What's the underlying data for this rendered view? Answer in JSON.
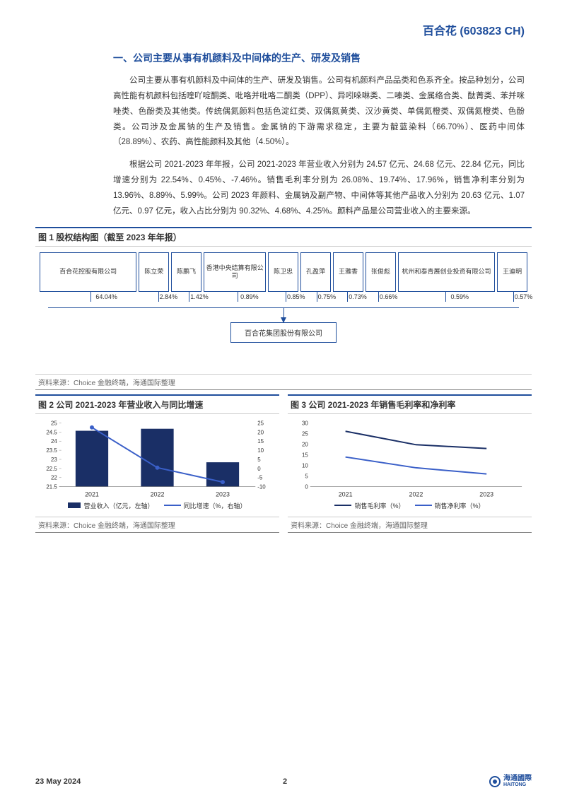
{
  "header": {
    "company": "百合花",
    "ticker": "(603823 CH)"
  },
  "section1": {
    "title": "一、公司主要从事有机颜料及中间体的生产、研发及销售",
    "para1": "公司主要从事有机颜料及中间体的生产、研发及销售。公司有机颜料产品品类和色系齐全。按品种划分，公司高性能有机颜料包括喹吖啶酮类、吡咯并吡咯二酮类（DPP）、异吲哚啉类、二嗪类、金属络合类、酞菁类、苯并咪唑类、色酚类及其他类。传统偶氮颜料包括色淀红类、双偶氮黄类、汉沙黄类、单偶氮橙类、双偶氮橙类、色酚类。公司涉及金属钠的生产及销售。金属钠的下游需求稳定，主要为靛蓝染料（66.70%）、医药中间体（28.89%）、农药、高性能颜料及其他（4.50%）。",
    "para2": "根据公司 2021-2023 年年报，公司 2021-2023 年营业收入分别为 24.57 亿元、24.68 亿元、22.84 亿元，同比增速分别为 22.54%、0.45%、-7.46%。销售毛利率分别为 26.08%、19.74%、17.96%，销售净利率分别为 13.96%、8.89%、5.99%。公司 2023 年颜料、金属钠及副产物、中间体等其他产品收入分别为 20.63 亿元、1.07 亿元、0.97 亿元，收入占比分别为 90.32%、4.68%、4.25%。颜料产品是公司营业收入的主要来源。"
  },
  "fig1": {
    "title": "图 1 股权结构图（截至 2023 年年报）",
    "source": "资料来源：Choice 金融终端，海通国际整理",
    "shareholders": [
      {
        "name": "百合花控股有限公司",
        "pct": "64.04%",
        "cls": "wide"
      },
      {
        "name": "陈立荣",
        "pct": "2.84%",
        "cls": "narrow"
      },
      {
        "name": "陈鹏飞",
        "pct": "1.42%",
        "cls": "narrow"
      },
      {
        "name": "香港中央结算有限公司",
        "pct": "0.89%",
        "cls": ""
      },
      {
        "name": "陈卫忠",
        "pct": "0.85%",
        "cls": "narrow"
      },
      {
        "name": "孔盈萍",
        "pct": "0.75%",
        "cls": "narrow"
      },
      {
        "name": "王雅香",
        "pct": "0.73%",
        "cls": "narrow"
      },
      {
        "name": "张俊彪",
        "pct": "0.66%",
        "cls": "narrow"
      },
      {
        "name": "杭州和泰青展创业投资有限公司",
        "pct": "0.59%",
        "cls": "wide"
      },
      {
        "name": "王迪明",
        "pct": "0.57%",
        "cls": "narrow"
      }
    ],
    "target": "百合花集团股份有限公司"
  },
  "fig2": {
    "title": "图 2 公司 2021-2023 年营业收入与同比增速",
    "source": "资料来源：Choice 金融终端，海通国际整理",
    "type": "bar+line",
    "categories": [
      "2021",
      "2022",
      "2023"
    ],
    "bar_values": [
      24.57,
      24.68,
      22.84
    ],
    "line_values": [
      22.54,
      0.45,
      -7.46
    ],
    "left_ticks": [
      21.5,
      22,
      22.5,
      23,
      23.5,
      24,
      24.5,
      25
    ],
    "right_ticks": [
      -10,
      -5,
      0,
      5,
      10,
      15,
      20,
      25
    ],
    "bar_color": "#1a2f66",
    "line_color": "#3a5fc8",
    "legend": [
      {
        "label": "营业收入（亿元，左轴）",
        "style": "bar"
      },
      {
        "label": "同比增速（%，右轴）",
        "style": "line"
      }
    ],
    "left_ylim": [
      21.5,
      25
    ],
    "right_ylim": [
      -10,
      25
    ],
    "background": "#ffffff",
    "grid_color": "#d0d0d0"
  },
  "fig3": {
    "title": "图 3 公司 2021-2023 年销售毛利率和净利率",
    "source": "资料来源：Choice 金融终端，海通国际整理",
    "type": "line",
    "categories": [
      "2021",
      "2022",
      "2023"
    ],
    "series": [
      {
        "name": "销售毛利率（%）",
        "values": [
          26.08,
          19.74,
          17.96
        ],
        "color": "#1a2f66"
      },
      {
        "name": "销售净利率（%）",
        "values": [
          13.96,
          8.89,
          5.99
        ],
        "color": "#3a5fc8"
      }
    ],
    "yticks": [
      0,
      5,
      10,
      15,
      20,
      25,
      30
    ],
    "ylim": [
      0,
      30
    ],
    "background": "#ffffff",
    "grid_color": "#d0d0d0"
  },
  "footer": {
    "date": "23 May 2024",
    "page": "2",
    "brand": "海通國際",
    "brand_en": "HAITONG"
  }
}
